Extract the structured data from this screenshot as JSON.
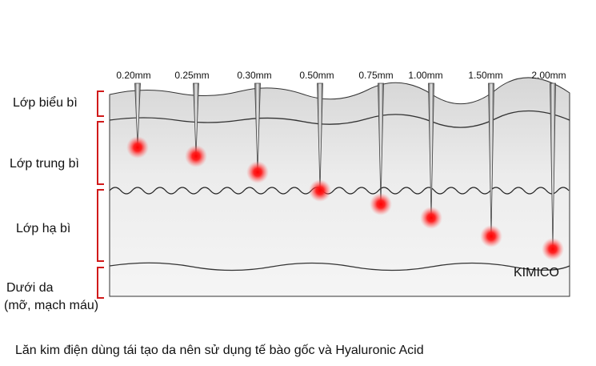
{
  "diagram": {
    "needle_lengths": [
      {
        "label": "0.20mm"
      },
      {
        "label": "0.25mm"
      },
      {
        "label": "0.30mm"
      },
      {
        "label": "0.50mm"
      },
      {
        "label": "0.75mm"
      },
      {
        "label": "1.00mm"
      },
      {
        "label": "1.50mm"
      },
      {
        "label": "2.00mm"
      }
    ],
    "layers": [
      {
        "label": "Lớp biểu bì"
      },
      {
        "label": "Lớp trung bì"
      },
      {
        "label": "Lớp hạ bì"
      },
      {
        "label_line1": "Dưới da",
        "label_line2": "(mỡ, mạch máu)"
      }
    ],
    "brand": "KIMICO",
    "colors": {
      "bracket": "#d11a1a",
      "dot": "#ff1a1a",
      "skin_top": "#d8d8d8",
      "skin_bottom": "#f4f4f4"
    }
  },
  "caption": "Lăn kim điện dùng tái tạo da nên sử dụng tế bào gốc và Hyaluronic Acid"
}
